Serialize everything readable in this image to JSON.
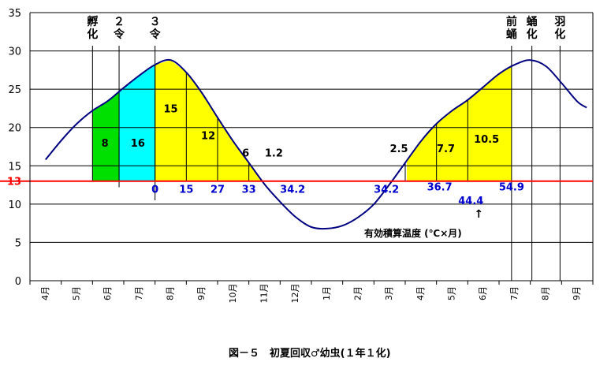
{
  "chart_data": {
    "type": "line",
    "caption": "図－５　初夏回収♂幼虫(１年１化)",
    "x_labels": [
      "4月",
      "5月",
      "6月",
      "7月",
      "8月",
      "9月",
      "10月",
      "11月",
      "12月",
      "1月",
      "2月",
      "3月",
      "4月",
      "5月",
      "6月",
      "7月",
      "8月",
      "9月"
    ],
    "y_ticks": [
      "0",
      "5",
      "10",
      "15",
      "20",
      "25",
      "30",
      "35"
    ],
    "ylim": [
      0,
      35
    ],
    "threshold": {
      "value": 13,
      "label": "13",
      "color": "#ff0000"
    },
    "temperature_series": {
      "color": "#000080",
      "x": [
        0,
        0.5,
        1,
        1.5,
        2,
        2.5,
        3,
        3.5,
        4,
        4.5,
        5,
        5.5,
        6,
        6.5,
        7,
        7.5,
        8,
        8.5,
        9,
        9.5,
        10,
        10.5,
        11,
        11.5,
        12,
        12.5,
        13,
        13.5,
        14,
        14.5,
        15,
        15.5,
        16,
        16.5,
        17,
        17.3
      ],
      "y": [
        15.8,
        18.3,
        20.5,
        22.2,
        23.5,
        25.2,
        26.8,
        28.2,
        28.8,
        27.2,
        24.5,
        21.3,
        18.2,
        15.4,
        12.6,
        10.3,
        8.3,
        7.0,
        6.8,
        7.2,
        8.3,
        10.0,
        12.6,
        15.4,
        18.2,
        20.5,
        22.2,
        23.6,
        25.3,
        27.0,
        28.2,
        28.8,
        28.0,
        25.8,
        23.4,
        22.6
      ]
    },
    "stage_regions": [
      {
        "x_start": 1.5,
        "x_end": 2.35,
        "color": "#00e000",
        "value": "8",
        "label_x": 1.9,
        "label_y": 17.5
      },
      {
        "x_start": 2.35,
        "x_end": 3.5,
        "color": "#00ffff",
        "value": "16",
        "label_x": 2.95,
        "label_y": 17.5
      },
      {
        "x_start": 3.5,
        "x_end": 7.0,
        "color": "#ffff00"
      },
      {
        "x_start": 11.55,
        "x_end": 14.9,
        "color": "#ffff00"
      }
    ],
    "month_accumulation_labels": [
      {
        "text": "15",
        "x": 4.0,
        "y": 22.0
      },
      {
        "text": "12",
        "x": 5.2,
        "y": 18.5
      },
      {
        "text": "6",
        "x": 6.4,
        "y": 16.2
      },
      {
        "text": "1.2",
        "x": 7.3,
        "y": 16.2
      },
      {
        "text": "2.5",
        "x": 11.3,
        "y": 16.8
      },
      {
        "text": "7.7",
        "x": 12.8,
        "y": 16.8
      },
      {
        "text": "10.5",
        "x": 14.1,
        "y": 18.0
      }
    ],
    "cumulative_labels": [
      {
        "text": "0",
        "x": 3.5,
        "y": 11.5
      },
      {
        "text": "15",
        "x": 4.5,
        "y": 11.5
      },
      {
        "text": "27",
        "x": 5.5,
        "y": 11.5
      },
      {
        "text": "33",
        "x": 6.5,
        "y": 11.5
      },
      {
        "text": "34.2",
        "x": 7.9,
        "y": 11.5
      },
      {
        "text": "34.2",
        "x": 10.9,
        "y": 11.5
      },
      {
        "text": "36.7",
        "x": 12.6,
        "y": 11.8
      },
      {
        "text": "44.4",
        "x": 13.6,
        "y": 10.0
      },
      {
        "text": "54.9",
        "x": 14.9,
        "y": 11.8
      }
    ],
    "cumulative_label_color": "#0000cd",
    "stage_markers": [
      {
        "x": 1.5,
        "label": [
          "孵",
          "化"
        ],
        "label_x": 1.5
      },
      {
        "x": 2.35,
        "label": [
          "２",
          "令"
        ],
        "label_x": 2.35
      },
      {
        "x": 3.5,
        "label": [
          "３",
          "令"
        ],
        "label_x": 3.5
      },
      {
        "x": 14.9,
        "label": [
          "前",
          "蛹"
        ],
        "label_x": 14.9
      },
      {
        "x": 15.55,
        "label": [
          "蛹",
          "化"
        ],
        "label_x": 15.55
      },
      {
        "x": 16.45,
        "label": [
          "羽",
          "化"
        ],
        "label_x": 16.45
      }
    ],
    "annotation": {
      "text": "有効積算温度 (℃×月)",
      "arrow": "↑"
    }
  }
}
